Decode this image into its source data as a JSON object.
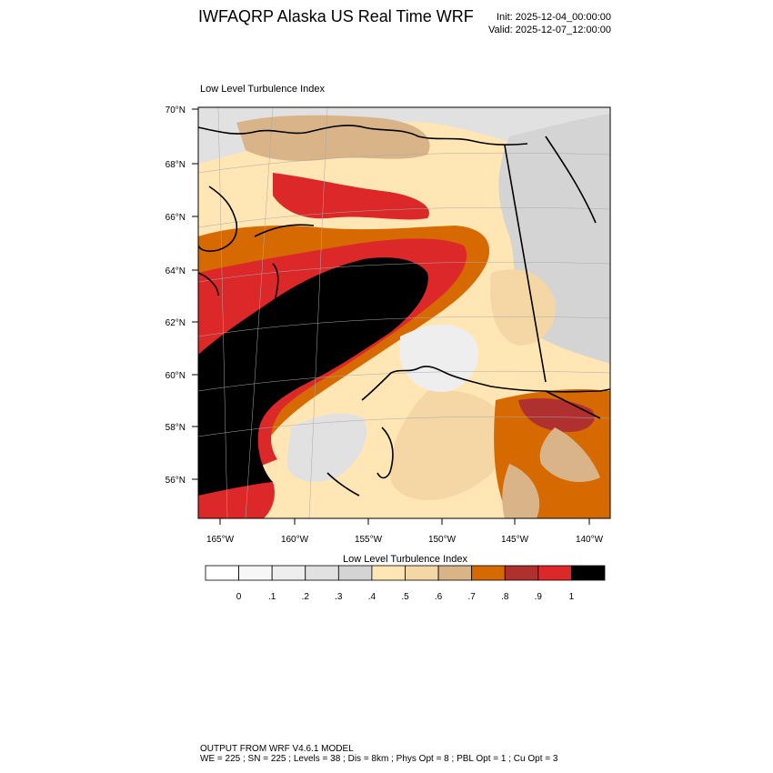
{
  "header": {
    "title": "IWFAQRP Alaska US Real Time WRF",
    "init": "Init: 2025-12-04_00:00:00",
    "valid": "Valid: 2025-12-07_12:00:00"
  },
  "plot": {
    "subtitle": "Low Level Turbulence Index",
    "lat_labels": [
      "70°N",
      "68°N",
      "66°N",
      "64°N",
      "62°N",
      "60°N",
      "58°N",
      "56°N"
    ],
    "lon_labels": [
      "165°W",
      "160°W",
      "155°W",
      "150°W",
      "145°W",
      "140°W"
    ]
  },
  "colorbar": {
    "title": "Low Level Turbulence Index",
    "labels": [
      "0",
      ".1",
      ".2",
      ".3",
      ".4",
      ".5",
      ".6",
      ".7",
      ".8",
      ".9",
      "1"
    ],
    "colors": [
      "#ffffff",
      "#f7f7f7",
      "#eeeeee",
      "#e1e1e1",
      "#d4d4d4",
      "#ffe6b4",
      "#f5d7a6",
      "#d8b488",
      "#d66a00",
      "#b03030",
      "#dc2828",
      "#000000"
    ]
  },
  "footer": {
    "line1": "OUTPUT FROM WRF V4.6.1 MODEL",
    "line2": "WE = 225 ; SN = 225 ; Levels = 38 ; Dis = 8km ; Phys Opt = 8 ; PBL Opt = 1 ; Cu Opt = 3"
  }
}
